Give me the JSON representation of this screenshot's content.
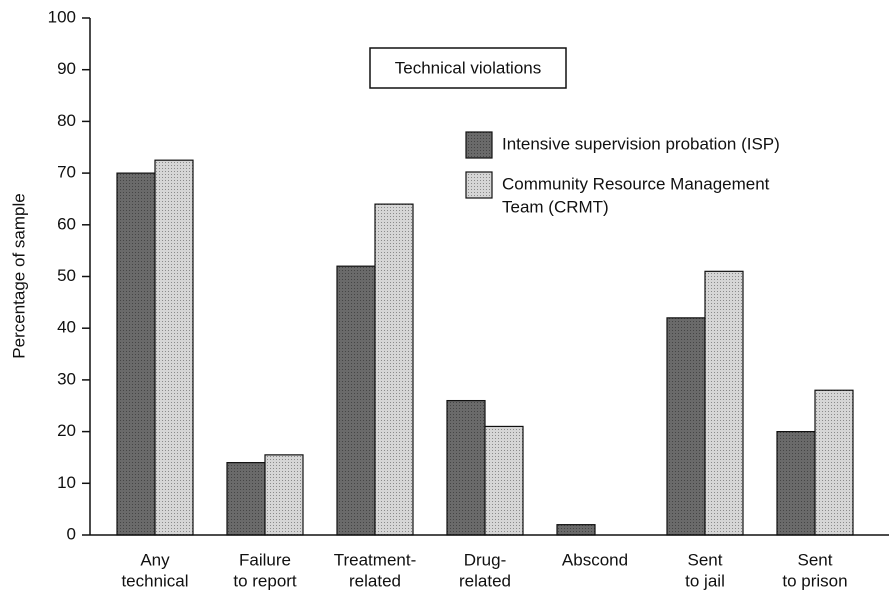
{
  "chart_data": {
    "type": "bar",
    "annotation": "Technical violations",
    "y_label": "Percentage of sample",
    "categories": [
      [
        "Any",
        "technical"
      ],
      [
        "Failure",
        "to report"
      ],
      [
        "Treatment-",
        "related"
      ],
      [
        "Drug-",
        "related"
      ],
      [
        "Abscond"
      ],
      [
        "Sent",
        "to jail"
      ],
      [
        "Sent",
        "to prison"
      ]
    ],
    "series": [
      {
        "name": [
          "Intensive supervision probation (ISP)"
        ],
        "color": "#6a6a6a",
        "values": [
          70,
          14,
          52,
          26,
          2,
          42,
          20
        ]
      },
      {
        "name": [
          "Community Resource Management",
          "Team (CRMT)"
        ],
        "color": "#d6d6d6",
        "values": [
          72.5,
          15.5,
          64,
          21,
          0,
          51,
          28
        ]
      }
    ],
    "ylim": [
      0,
      100
    ],
    "yticks": [
      0,
      10,
      20,
      30,
      40,
      50,
      60,
      70,
      80,
      90,
      100
    ],
    "grid": false
  }
}
